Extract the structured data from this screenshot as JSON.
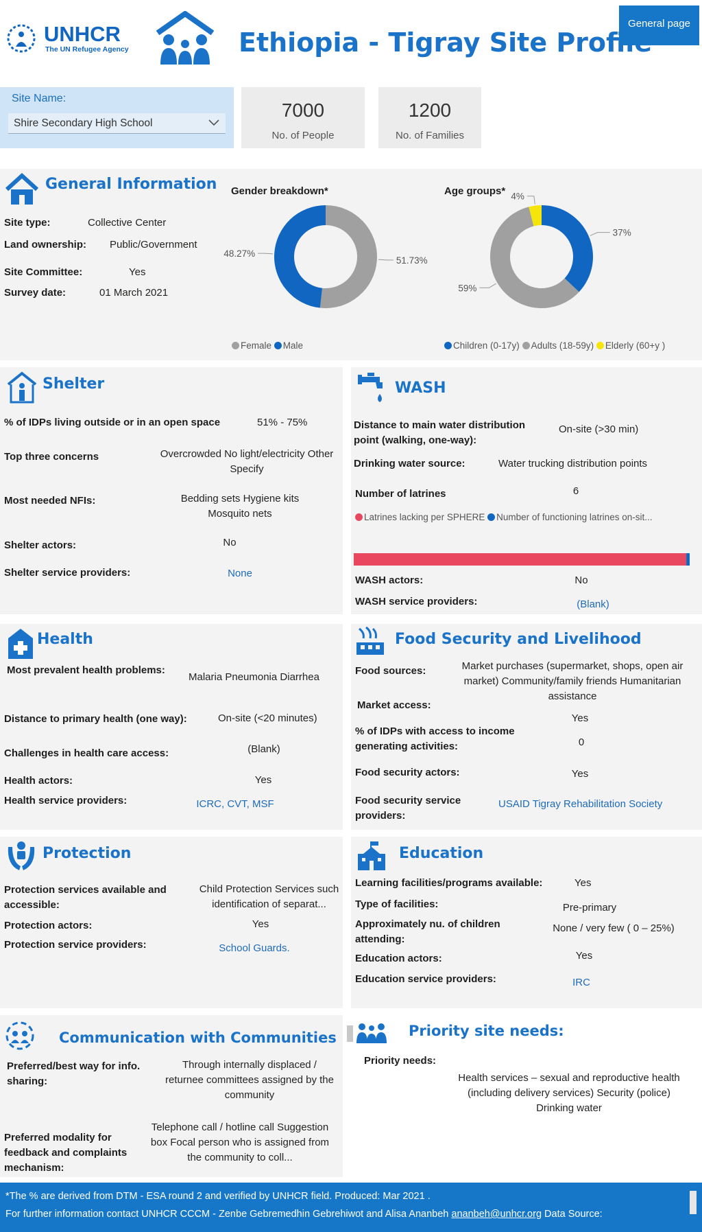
{
  "header": {
    "logo_text": "UNHCR",
    "logo_sub": "The UN Refugee Agency",
    "title": "Ethiopia - Tigray Site Profile",
    "general_page": "General page"
  },
  "site": {
    "label": "Site Name:",
    "value": "Shire Secondary High School"
  },
  "kpis": {
    "people_value": "7000",
    "people_label": "No. of People",
    "families_value": "1200",
    "families_label": "No. of Families"
  },
  "general": {
    "title": "General Information",
    "rows": [
      {
        "label": "Site type:",
        "value": "Collective Center"
      },
      {
        "label": "Land ownership:",
        "value": "Public/Government"
      },
      {
        "label": "Site  Committee:",
        "value": "Yes"
      },
      {
        "label": "Survey date:",
        "value": "01 March 2021"
      }
    ]
  },
  "chart_data": [
    {
      "type": "pie",
      "title": "Gender breakdown*",
      "categories": [
        "Female",
        "Male"
      ],
      "values": [
        51.73,
        48.27
      ],
      "data_labels": [
        "51.73%",
        "48.27%"
      ],
      "colors": [
        "#a0a0a0",
        "#1066c0"
      ],
      "legend": "bottom"
    },
    {
      "type": "pie",
      "title": "Age groups*",
      "categories": [
        "Children (0-17y)",
        "Adults (18-59y)",
        "Elderly (60+y )"
      ],
      "values": [
        37,
        59,
        4
      ],
      "data_labels": [
        "37%",
        "59%",
        "4%"
      ],
      "colors": [
        "#1066c0",
        "#a0a0a0",
        "#f5e50a"
      ],
      "legend": "bottom"
    },
    {
      "type": "bar",
      "categories": [
        "Latrines lacking per SPHERE",
        "Number of functioning latrines on-sit..."
      ],
      "legend_labels": [
        "Latrines lacking per SPHERE",
        "Number of functioning latrines on-sit..."
      ],
      "values": [
        99,
        1
      ],
      "unit": "%",
      "colors": [
        "#e8475f",
        "#1066c0"
      ],
      "legend": "top"
    }
  ],
  "shelter": {
    "title": "Shelter",
    "outside_label": "% of IDPs living outside or in an open space",
    "outside_value": "51% - 75%",
    "concerns_label": "Top  three concerns",
    "concerns_value": "Overcrowded No light/electricity Other Specify",
    "nfi_label": "Most needed NFIs:",
    "nfi_value": "Bedding sets Hygiene kits Mosquito nets",
    "actors_label": "Shelter actors:",
    "actors_value": "No",
    "providers_label": "Shelter service providers:",
    "providers_value": "None"
  },
  "wash": {
    "title": "WASH",
    "distance_label": "Distance to main water distribution point (walking, one-way):",
    "distance_value": "On-site (>30 min)",
    "source_label": "Drinking water source:",
    "source_value": "Water trucking distribution points",
    "latrines_label": "Number of latrines",
    "latrines_value": "6",
    "actors_label": "WASH actors:",
    "actors_value": "No",
    "providers_label": "WASH service providers:",
    "providers_value": "(Blank)"
  },
  "health": {
    "title": "Health",
    "problems_label": "Most prevalent health problems:",
    "problems_value": "Malaria Pneumonia Diarrhea",
    "distance_label": "Distance to primary health (one way):",
    "distance_value": "On-site (<20 minutes)",
    "challenges_label": "Challenges in health care access:",
    "challenges_value": "(Blank)",
    "actors_label": "Health actors:",
    "actors_value": "Yes",
    "providers_label": "Health service providers:",
    "providers_value": "ICRC, CVT, MSF"
  },
  "food": {
    "title": "Food Security and Livelihood",
    "sources_label": "Food sources:",
    "sources_value": "Market purchases (supermarket, shops, open air market) Community/family friends Humanitarian assistance",
    "market_label": "Market access:",
    "market_value": "Yes",
    "income_label": "% of IDPs with access to income generating activities:",
    "income_value": "0",
    "actors_label": "Food security actors:",
    "actors_value": "Yes",
    "providers_label": "Food security service providers:",
    "providers_value": "USAID Tigray Rehabilitation Society"
  },
  "protection": {
    "title": "Protection",
    "services_label": "Protection services  available and accessible:",
    "services_value": "Child Protection Services such identification of separat...",
    "actors_label": "Protection actors:",
    "actors_value": "Yes",
    "providers_label": "Protection service providers:",
    "providers_value": "School Guards."
  },
  "education": {
    "title": "Education",
    "facilities_label": "Learning facilities/programs available:",
    "facilities_value": "Yes",
    "type_label": "Type of facilities:",
    "type_value": "Pre-primary",
    "children_label": "Approximately nu. of children attending:",
    "children_value": "None / very few ( 0 – 25%)",
    "actors_label": "Education actors:",
    "actors_value": "Yes",
    "providers_label": "Education service providers:",
    "providers_value": "IRC"
  },
  "communication": {
    "title": "Communication with Communities",
    "info_label": "Preferred/best way for info. sharing:",
    "info_value": "Through internally displaced / returnee committees assigned by the community",
    "feedback_label": "Preferred modality for feedback and complaints mechanism:",
    "feedback_value": "Telephone call / hotline call Suggestion box Focal person who is assigned from the community to coll..."
  },
  "priority": {
    "title": "Priority site needs:",
    "needs_label": "Priority needs:",
    "needs_value": "Health services – sexual and reproductive health (including delivery services) Security (police) Drinking water"
  },
  "footer": {
    "line1": "*The % are derived from DTM - ESA round 2 and verified by UNHCR field.  Produced: Mar 2021 .",
    "line2_prefix": "For further information contact UNHCR CCCM - Zenbe Gebremedhin Gebrehiwot  and Alisa Ananbeh ",
    "email": "ananbeh@unhcr.org",
    "line2_suffix": "  Data Source:"
  }
}
